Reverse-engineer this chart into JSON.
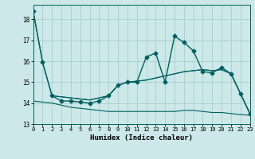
{
  "xlabel": "Humidex (Indice chaleur)",
  "x_ticks": [
    0,
    1,
    2,
    3,
    4,
    5,
    6,
    7,
    8,
    9,
    10,
    11,
    12,
    13,
    14,
    15,
    16,
    17,
    18,
    19,
    20,
    21,
    22,
    23
  ],
  "ylim": [
    13.0,
    18.7
  ],
  "xlim": [
    0,
    23
  ],
  "yticks": [
    13,
    14,
    15,
    16,
    17,
    18
  ],
  "bg_color": "#cce8e8",
  "line_color": "#006060",
  "grid_color": "#aacece",
  "series": {
    "line_main": {
      "x": [
        0,
        1,
        2,
        3,
        4,
        5,
        6,
        7,
        8,
        9,
        10,
        11,
        12,
        13,
        14,
        15,
        16,
        17,
        18,
        19,
        20,
        21,
        22,
        23
      ],
      "y": [
        18.4,
        15.95,
        14.35,
        14.1,
        14.1,
        14.05,
        14.0,
        14.1,
        14.35,
        14.85,
        15.0,
        15.0,
        16.2,
        16.4,
        15.0,
        17.2,
        16.9,
        16.5,
        15.5,
        15.45,
        15.7,
        15.4,
        14.45,
        13.5
      ],
      "marker": "D",
      "markersize": 2.5,
      "linewidth": 1.0
    },
    "line_upper": {
      "x": [
        0,
        1,
        2,
        3,
        4,
        5,
        6,
        7,
        8,
        9,
        10,
        11,
        12,
        13,
        14,
        15,
        16,
        17,
        18,
        19,
        20,
        21,
        22,
        23
      ],
      "y": [
        18.4,
        15.95,
        14.35,
        14.3,
        14.25,
        14.2,
        14.15,
        14.25,
        14.35,
        14.85,
        15.0,
        15.05,
        15.1,
        15.2,
        15.3,
        15.4,
        15.5,
        15.55,
        15.6,
        15.55,
        15.6,
        15.4,
        14.45,
        13.5
      ],
      "linewidth": 0.8
    },
    "line_mid": {
      "x": [
        2,
        3,
        4,
        5,
        6,
        7,
        8,
        9,
        10,
        11,
        12,
        13,
        14,
        15,
        16,
        17,
        18,
        19,
        20,
        21,
        22,
        23
      ],
      "y": [
        14.35,
        14.3,
        14.25,
        14.2,
        14.15,
        14.25,
        14.35,
        14.85,
        15.0,
        15.05,
        15.1,
        15.2,
        15.3,
        15.4,
        15.5,
        15.55,
        15.6,
        15.55,
        15.6,
        15.4,
        14.45,
        13.5
      ],
      "linewidth": 0.8
    },
    "line_lower": {
      "x": [
        0,
        1,
        2,
        3,
        4,
        5,
        6,
        7,
        8,
        9,
        10,
        11,
        12,
        13,
        14,
        15,
        16,
        17,
        18,
        19,
        20,
        21,
        22,
        23
      ],
      "y": [
        14.1,
        14.05,
        14.0,
        13.9,
        13.8,
        13.75,
        13.7,
        13.65,
        13.6,
        13.6,
        13.6,
        13.6,
        13.6,
        13.6,
        13.6,
        13.6,
        13.65,
        13.65,
        13.6,
        13.55,
        13.55,
        13.5,
        13.45,
        13.42
      ],
      "linewidth": 0.8
    }
  }
}
